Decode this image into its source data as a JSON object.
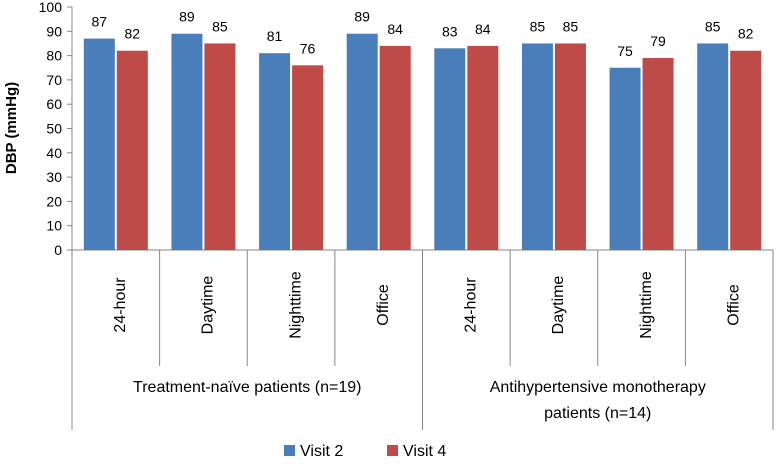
{
  "chart_data": {
    "type": "bar",
    "title": "",
    "ylabel": "DBP (mmHg)",
    "ylim": [
      0,
      100
    ],
    "ytick_step": 10,
    "groups": [
      {
        "label": "Treatment-naïve patients (n=19)",
        "categories": [
          "24-hour",
          "Daytime",
          "Nighttime",
          "Office"
        ]
      },
      {
        "label": "Antihypertensive monotherapy patients (n=14)",
        "label_lines": [
          "Antihypertensive monotherapy",
          "patients (n=14)"
        ],
        "categories": [
          "24-hour",
          "Daytime",
          "Nighttime",
          "Office"
        ]
      }
    ],
    "series": [
      {
        "name": "Visit 2",
        "color": "#4a7ebb",
        "values": [
          87,
          89,
          81,
          89,
          83,
          85,
          75,
          85
        ],
        "labels": [
          "87",
          "89",
          "81",
          "89",
          "83",
          "85",
          "75",
          "85"
        ]
      },
      {
        "name": "Visit 4",
        "color": "#be4b48",
        "values": [
          82,
          85,
          76,
          84,
          84,
          85,
          79,
          82
        ],
        "labels": [
          "82",
          "85",
          "76",
          "84",
          "84",
          "85",
          "79",
          "82"
        ]
      }
    ],
    "legend_position": "bottom"
  }
}
